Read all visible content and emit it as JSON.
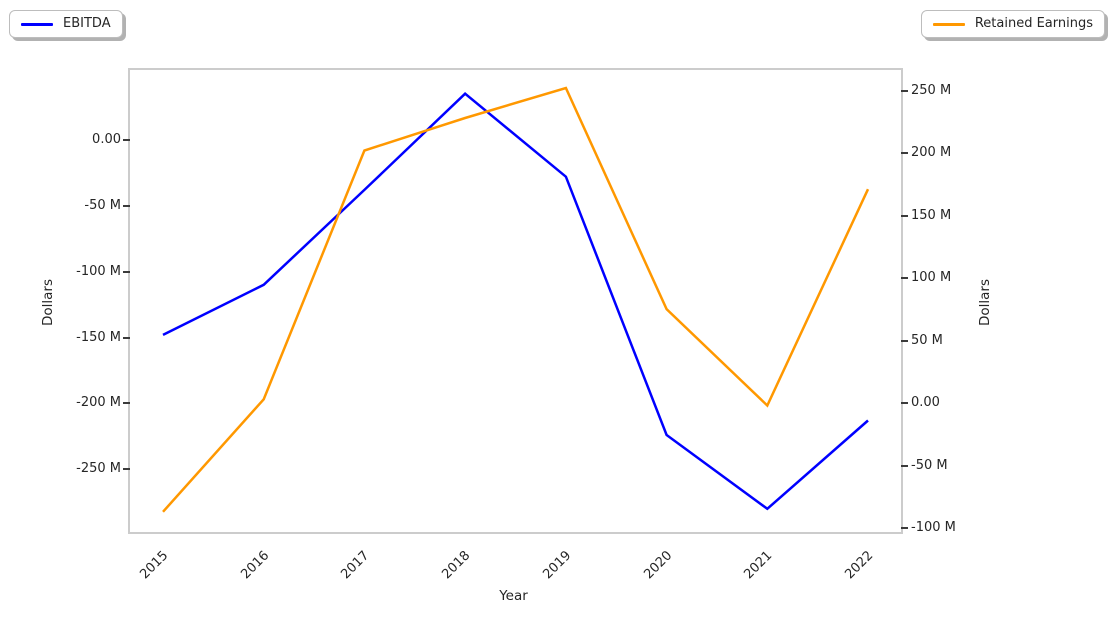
{
  "legend": {
    "ebitda_label": "EBITDA",
    "retained_label": "Retained Earnings"
  },
  "chart_data": {
    "type": "line",
    "x": [
      2015,
      2016,
      2017,
      2018,
      2019,
      2020,
      2021,
      2022
    ],
    "series": [
      {
        "name": "EBITDA",
        "color": "#0000FF",
        "axis": "left",
        "values_millions": [
          -148,
          -110,
          -38,
          35,
          -28,
          -224,
          -280,
          -213
        ]
      },
      {
        "name": "Retained Earnings",
        "color": "#FF9800",
        "axis": "right",
        "values_millions": [
          -87,
          3,
          202,
          228,
          252,
          75,
          -2,
          171
        ]
      }
    ],
    "axes": {
      "left": {
        "label": "Dollars",
        "ylim_millions": [
          -297.6,
          53.0
        ],
        "ticks": [
          {
            "value": 0,
            "label": "0.00"
          },
          {
            "value": -50,
            "label": "-50 M"
          },
          {
            "value": -100,
            "label": "-100 M"
          },
          {
            "value": -150,
            "label": "-150 M"
          },
          {
            "value": -200,
            "label": "-200 M"
          },
          {
            "value": -250,
            "label": "-250 M"
          }
        ]
      },
      "right": {
        "label": "Dollars",
        "ylim_millions": [
          -103.2,
          266.4
        ],
        "ticks": [
          {
            "value": 250,
            "label": "250 M"
          },
          {
            "value": 200,
            "label": "200 M"
          },
          {
            "value": 150,
            "label": "150 M"
          },
          {
            "value": 100,
            "label": "100 M"
          },
          {
            "value": 50,
            "label": "50 M"
          },
          {
            "value": 0,
            "label": "0.00"
          },
          {
            "value": -50,
            "label": "-50 M"
          },
          {
            "value": -100,
            "label": "-100 M"
          }
        ]
      },
      "x": {
        "label": "Year",
        "tick_labels": [
          "2015",
          "2016",
          "2017",
          "2018",
          "2019",
          "2020",
          "2021",
          "2022"
        ]
      }
    },
    "grid": false,
    "legend_position": "EBITDA top-left, Retained Earnings top-right, outside plot"
  }
}
